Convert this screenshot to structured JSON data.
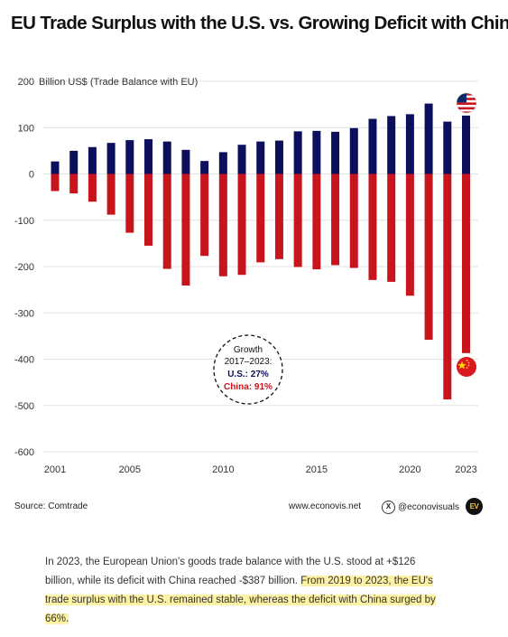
{
  "title": "EU Trade Surplus with the U.S. vs. Growing Deficit with China",
  "ylabel": "Billion US$ (Trade Balance with EU)",
  "colors": {
    "us": "#0b0f5c",
    "china": "#c8141c",
    "grid": "#e1e1e1"
  },
  "chart_data": {
    "type": "bar",
    "title": "EU Trade Surplus with the U.S. vs. Growing Deficit with China",
    "ylabel": "Billion US$ (Trade Balance with EU)",
    "xlabel": "",
    "ylim": [
      -600,
      200
    ],
    "yticks": [
      200,
      100,
      0,
      -100,
      -200,
      -300,
      -400,
      -500,
      -600
    ],
    "ytick_labels": [
      "200",
      "100",
      "0",
      "-100",
      "-200",
      "-300",
      "-400",
      "-500",
      "-600"
    ],
    "x": [
      2001,
      2002,
      2003,
      2004,
      2005,
      2006,
      2007,
      2008,
      2009,
      2010,
      2011,
      2012,
      2013,
      2014,
      2015,
      2016,
      2017,
      2018,
      2019,
      2020,
      2021,
      2022,
      2023
    ],
    "xtick_labels": [
      "2001",
      "2005",
      "2010",
      "2015",
      "2020",
      "2023"
    ],
    "xtick_positions": [
      2001,
      2005,
      2010,
      2015,
      2020,
      2023
    ],
    "series": [
      {
        "key": "us",
        "values": [
          27,
          50,
          58,
          67,
          73,
          75,
          70,
          52,
          28,
          47,
          63,
          70,
          72,
          92,
          93,
          91,
          99,
          119,
          125,
          129,
          152,
          113,
          126
        ]
      },
      {
        "key": "china",
        "values": [
          -37,
          -42,
          -60,
          -88,
          -127,
          -155,
          -205,
          -241,
          -177,
          -221,
          -218,
          -191,
          -184,
          -201,
          -206,
          -197,
          -203,
          -229,
          -233,
          -263,
          -358,
          -487,
          -387
        ]
      }
    ],
    "grid": true,
    "legend": "none"
  },
  "annotation": {
    "line1": "Growth",
    "line2": "2017–2023:",
    "us_label": "U.S.: 27%",
    "china_label": "China: 91%"
  },
  "footer": {
    "source": "Source: Comtrade",
    "site": "www.econovis.net",
    "social": "@econovisuals",
    "x_icon": "x-logo-icon",
    "logo_text": "EV"
  },
  "caption": {
    "part1": "In 2023, the European Union's goods trade balance with the U.S. stood at +$126 billion, while its deficit with China reached -$387 billion.",
    "highlight": "From 2019 to 2023, the EU's trade surplus with the U.S. remained stable, whereas the deficit with China surged by 66%."
  }
}
